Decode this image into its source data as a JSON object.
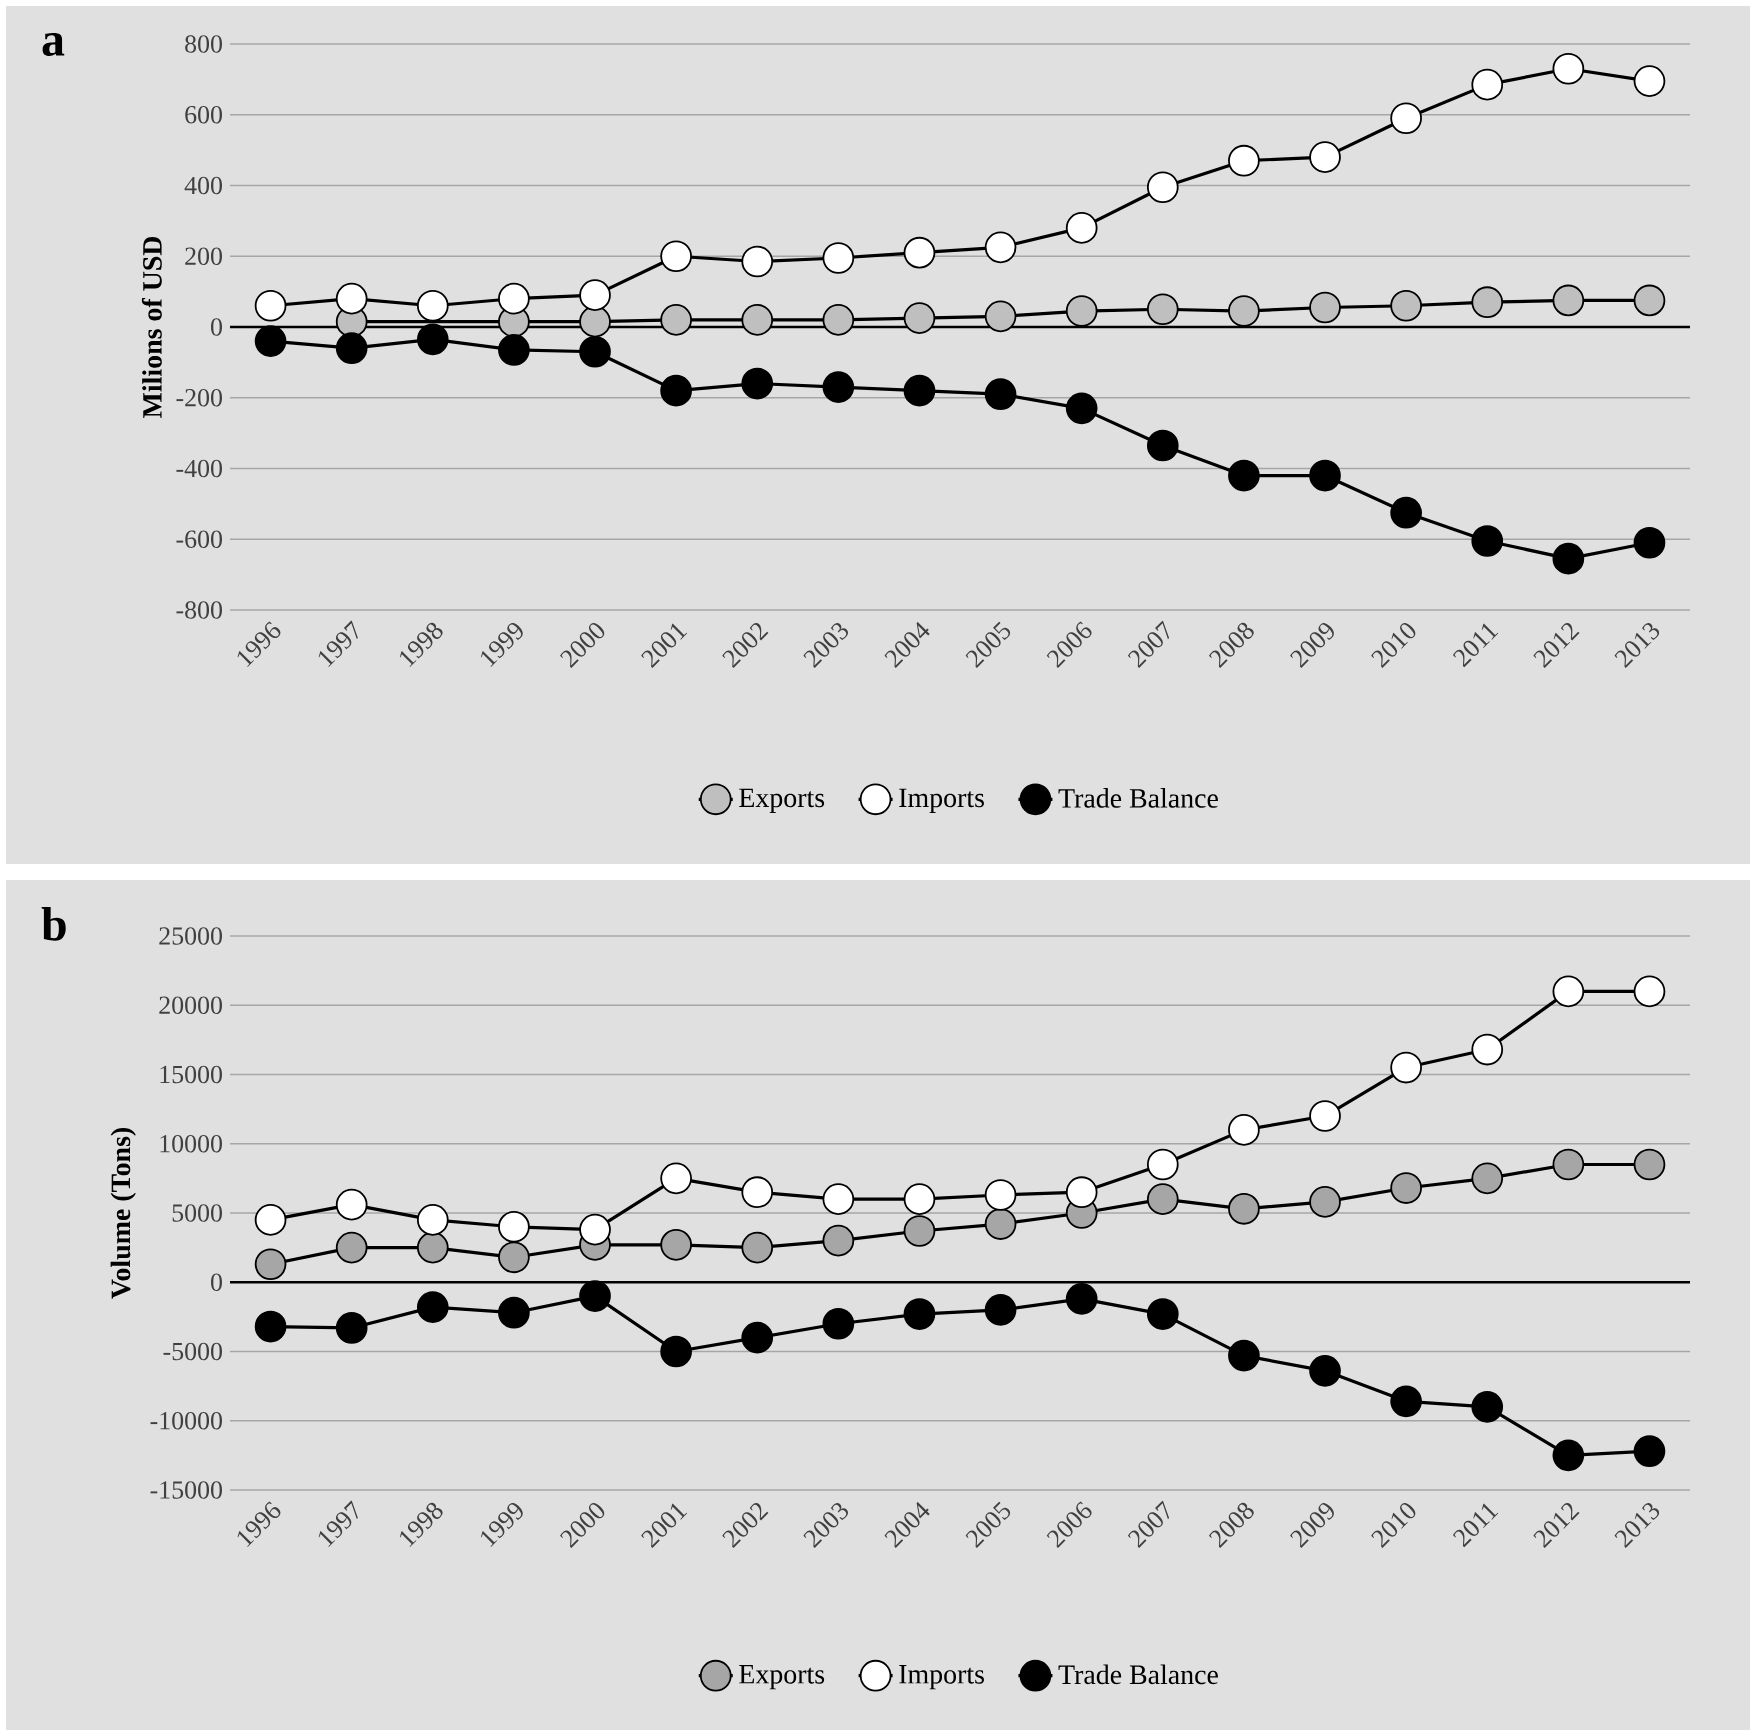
{
  "chart_data": [
    {
      "type": "line",
      "annotations": [
        "a"
      ],
      "ylabel": "Milions of USD",
      "categories": [
        "1996",
        "1997",
        "1998",
        "1999",
        "2000",
        "2001",
        "2002",
        "2003",
        "2004",
        "2005",
        "2006",
        "2007",
        "2008",
        "2009",
        "2010",
        "2011",
        "2012",
        "2013"
      ],
      "series": [
        {
          "name": "Exports",
          "color": "#bfbfbf",
          "values": [
            null,
            15,
            null,
            15,
            15,
            20,
            20,
            20,
            25,
            30,
            45,
            50,
            45,
            55,
            60,
            70,
            75,
            75
          ]
        },
        {
          "name": "Imports",
          "color": "#ffffff",
          "values": [
            60,
            80,
            60,
            80,
            90,
            200,
            185,
            195,
            210,
            225,
            280,
            395,
            470,
            480,
            590,
            685,
            730,
            695
          ]
        },
        {
          "name": "Trade Balance",
          "color": "#000000",
          "values": [
            -40,
            -60,
            -35,
            -65,
            -70,
            -180,
            -160,
            -170,
            -180,
            -190,
            -230,
            -335,
            -420,
            -420,
            -525,
            -605,
            -655,
            -610
          ]
        }
      ],
      "ylim": [
        -800,
        800
      ],
      "yticks": [
        -800,
        -600,
        -400,
        -200,
        0,
        200,
        400,
        600,
        800
      ],
      "grid": "y",
      "legend": "bottom",
      "marker": "circle",
      "line_style": "solid",
      "ref_lines": [
        {
          "axis": "y",
          "value": 0,
          "color": "#000000"
        }
      ]
    },
    {
      "type": "line",
      "annotations": [
        "b"
      ],
      "ylabel": "Volume  (Tons)",
      "categories": [
        "1996",
        "1997",
        "1998",
        "1999",
        "2000",
        "2001",
        "2002",
        "2003",
        "2004",
        "2005",
        "2006",
        "2007",
        "2008",
        "2009",
        "2010",
        "2011",
        "2012",
        "2013"
      ],
      "series": [
        {
          "name": "Exports",
          "color": "#a6a6a6",
          "values": [
            1300,
            2500,
            2500,
            1800,
            2700,
            2700,
            2500,
            3000,
            3700,
            4200,
            5000,
            6000,
            5300,
            5800,
            6800,
            7500,
            8500,
            8500
          ]
        },
        {
          "name": "Imports",
          "color": "#ffffff",
          "values": [
            4500,
            5600,
            4500,
            4000,
            3800,
            7500,
            6500,
            6000,
            6000,
            6300,
            6500,
            8500,
            11000,
            12000,
            15500,
            16800,
            21000,
            21000
          ]
        },
        {
          "name": "Trade Balance",
          "color": "#000000",
          "values": [
            -3200,
            -3300,
            -1800,
            -2200,
            -1000,
            -5000,
            -4000,
            -3000,
            -2300,
            -2000,
            -1200,
            -2300,
            -5300,
            -6400,
            -8600,
            -9000,
            -12500,
            -12200
          ]
        }
      ],
      "ylim": [
        -15000,
        25000
      ],
      "yticks": [
        -15000,
        -10000,
        -5000,
        0,
        5000,
        10000,
        15000,
        20000,
        25000
      ],
      "grid": "y",
      "legend": "bottom",
      "marker": "circle",
      "line_style": "solid",
      "ref_lines": [
        {
          "axis": "y",
          "value": 0,
          "color": "#000000"
        }
      ]
    }
  ]
}
